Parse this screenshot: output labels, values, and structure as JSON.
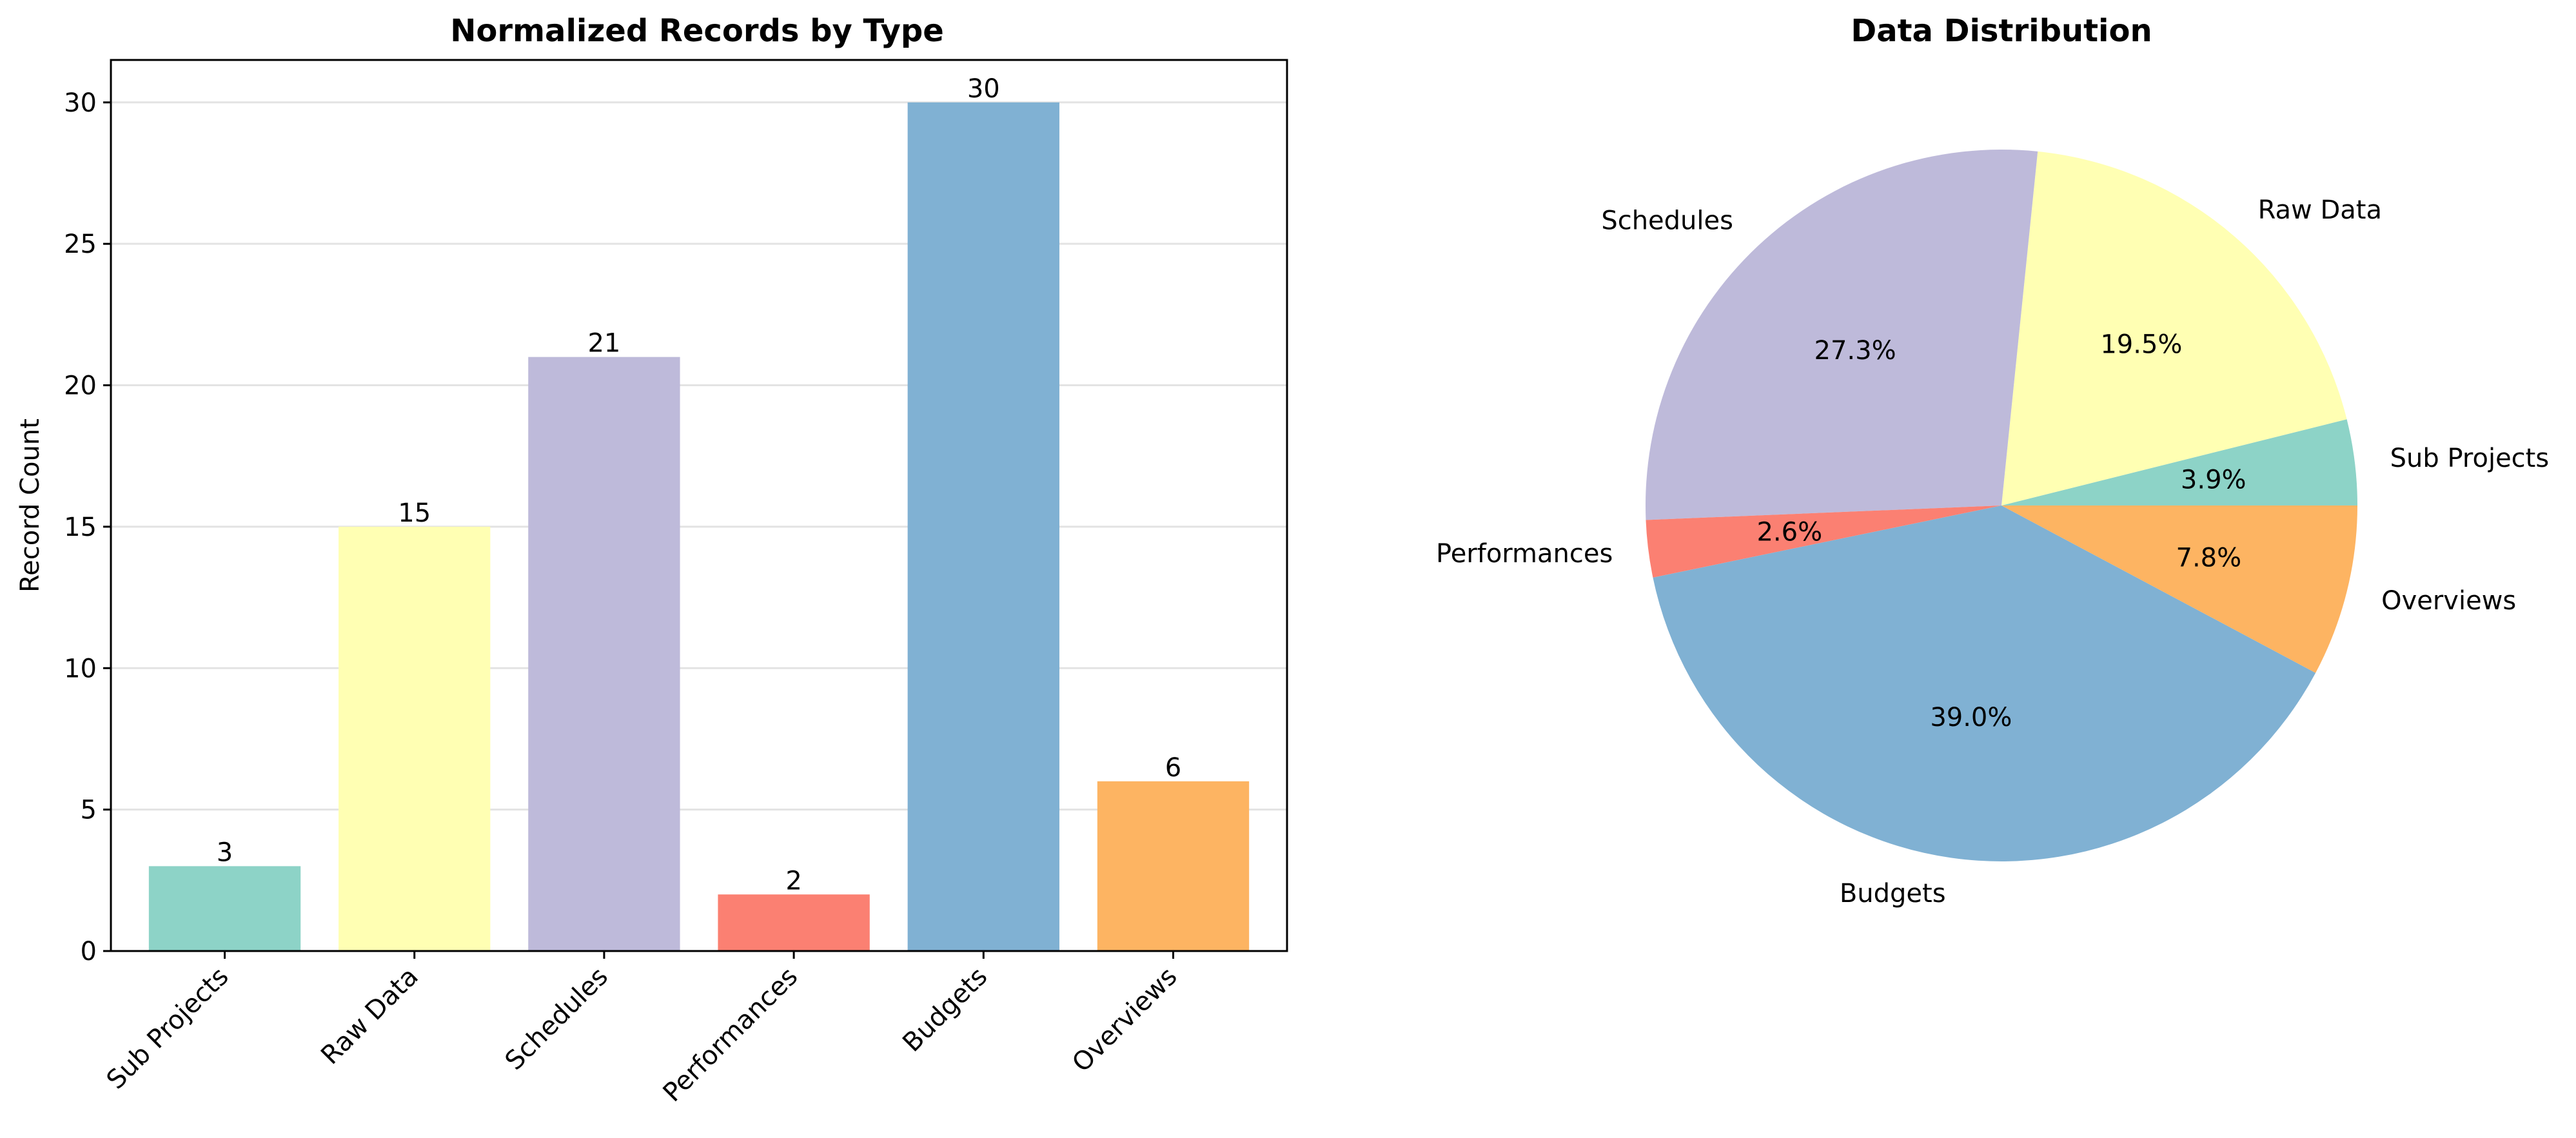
{
  "chart_data": [
    {
      "type": "bar",
      "title": "Normalized Records by Type",
      "xlabel": "",
      "ylabel": "Record Count",
      "categories": [
        "Sub Projects",
        "Raw Data",
        "Schedules",
        "Performances",
        "Budgets",
        "Overviews"
      ],
      "values": [
        3,
        15,
        21,
        2,
        30,
        6
      ],
      "colors": [
        "#8dd3c7",
        "#ffffb3",
        "#bebada",
        "#fb8072",
        "#80b1d3",
        "#fdb462"
      ],
      "ylim": [
        0,
        31.5
      ],
      "yticks": [
        0,
        5,
        10,
        15,
        20,
        25,
        30
      ],
      "grid": "y",
      "legend": "none"
    },
    {
      "type": "pie",
      "title": "Data Distribution",
      "labels": [
        "Sub Projects",
        "Raw Data",
        "Schedules",
        "Performances",
        "Budgets",
        "Overviews"
      ],
      "values": [
        3,
        15,
        21,
        2,
        30,
        6
      ],
      "percent_labels": [
        "3.9%",
        "19.5%",
        "27.3%",
        "2.6%",
        "39.0%",
        "7.8%"
      ],
      "colors": [
        "#8dd3c7",
        "#ffffb3",
        "#bebada",
        "#fb8072",
        "#80b1d3",
        "#fdb462"
      ],
      "start_angle": 0,
      "direction": "counterclockwise"
    }
  ]
}
